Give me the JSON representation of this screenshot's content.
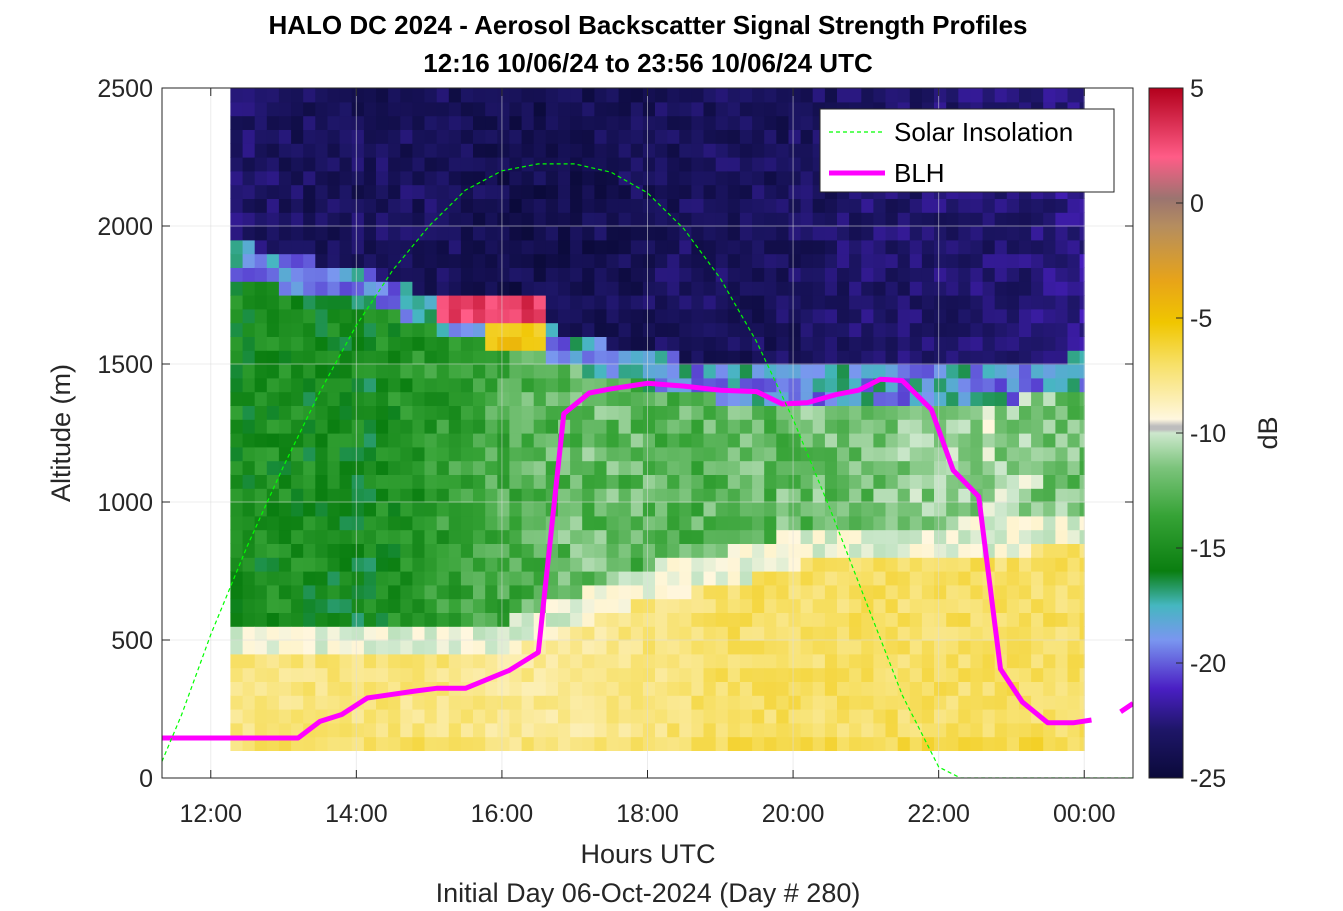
{
  "chart_data": {
    "type": "heatmap",
    "title": "HALO DC 2024 - Aerosol Backscatter Signal Strength Profiles",
    "subtitle": "12:16 10/06/24 to 23:56 10/06/24  UTC",
    "xlabel": "Hours UTC",
    "xlabel2": "Initial Day 06-Oct-2024 (Day # 280)",
    "ylabel": "Altitude (m)",
    "colorbar_label": "dB",
    "xlim": [
      11.33,
      24.67
    ],
    "ylim": [
      0,
      2500
    ],
    "grid": true,
    "x_tick_labels": [
      "12:00",
      "14:00",
      "16:00",
      "18:00",
      "20:00",
      "22:00",
      "00:00"
    ],
    "x_tick_values": [
      12,
      14,
      16,
      18,
      20,
      22,
      24
    ],
    "y_tick_labels": [
      "0",
      "500",
      "1000",
      "1500",
      "2000",
      "2500"
    ],
    "y_tick_values": [
      0,
      500,
      1000,
      1500,
      2000,
      2500
    ],
    "colorbar": {
      "range": [
        -25,
        5
      ],
      "tick_labels": [
        "5",
        "0",
        "-5",
        "-10",
        "-15",
        "-20",
        "-25"
      ],
      "tick_values": [
        5,
        0,
        -5,
        -10,
        -15,
        -20,
        -25
      ]
    },
    "legend": {
      "placement": "top-right",
      "entries": [
        "Solar Insolation",
        "BLH"
      ]
    },
    "heatmap": {
      "x_start": 12.27,
      "x_end": 24.0,
      "y_start": 100,
      "y_end": 2500,
      "z_description": "backscatter signal strength (dB)",
      "time_profiles": [
        {
          "t": 12.27,
          "top_of_haze": 430,
          "haze": -7,
          "ml": -15,
          "residual_top": 1900,
          "free": -23
        },
        {
          "t": 13.0,
          "top_of_haze": 430,
          "haze": -7,
          "ml": -15,
          "residual_top": 1850,
          "free": -23.5
        },
        {
          "t": 14.0,
          "top_of_haze": 430,
          "haze": -7,
          "ml": -15.5,
          "residual_top": 1800,
          "free": -23.5
        },
        {
          "t": 15.0,
          "top_of_haze": 430,
          "haze": -7,
          "ml": -14,
          "residual_top": 1700,
          "free": -23.5
        },
        {
          "t": 16.0,
          "top_of_haze": 450,
          "haze": -7.5,
          "ml": -13,
          "residual_top": 1650,
          "free": -24
        },
        {
          "t": 17.0,
          "top_of_haze": 550,
          "haze": -7.5,
          "ml": -12,
          "residual_top": 1550,
          "free": -24
        },
        {
          "t": 18.0,
          "top_of_haze": 650,
          "haze": -7,
          "ml": -12.5,
          "residual_top": 1500,
          "free": -23.5
        },
        {
          "t": 19.0,
          "top_of_haze": 700,
          "haze": -6.5,
          "ml": -12.5,
          "residual_top": 1450,
          "free": -23.5
        },
        {
          "t": 20.0,
          "top_of_haze": 780,
          "haze": -6.5,
          "ml": -12,
          "residual_top": 1450,
          "free": -23.5
        },
        {
          "t": 21.0,
          "top_of_haze": 800,
          "haze": -6.5,
          "ml": -12,
          "residual_top": 1450,
          "free": -23
        },
        {
          "t": 22.0,
          "top_of_haze": 800,
          "haze": -6.5,
          "ml": -11,
          "residual_top": 1450,
          "free": -23
        },
        {
          "t": 23.0,
          "top_of_haze": 820,
          "haze": -6.5,
          "ml": -11,
          "residual_top": 1450,
          "free": -23
        },
        {
          "t": 24.0,
          "top_of_haze": 850,
          "haze": -6.5,
          "ml": -12,
          "residual_top": 1500,
          "free": -22
        }
      ],
      "features": [
        {
          "t_range": [
            15.0,
            16.6
          ],
          "alt_range": [
            1640,
            1760
          ],
          "value": 3
        },
        {
          "t_range": [
            15.7,
            16.6
          ],
          "alt_range": [
            1560,
            1640
          ],
          "value": -5
        }
      ]
    },
    "series": [
      {
        "name": "BLH",
        "color": "#ff00ff",
        "x": [
          11.33,
          13.2,
          13.5,
          13.8,
          14.15,
          14.8,
          15.1,
          15.5,
          16.1,
          16.5,
          16.85,
          17.2,
          17.5,
          18.0,
          18.5,
          19.0,
          19.5,
          19.85,
          20.2,
          20.6,
          20.9,
          21.2,
          21.5,
          21.9,
          22.2,
          22.55,
          22.85,
          23.15,
          23.5,
          23.85,
          24.1
        ],
        "y": [
          145,
          145,
          205,
          230,
          290,
          315,
          325,
          325,
          390,
          455,
          1320,
          1395,
          1410,
          1430,
          1420,
          1405,
          1400,
          1355,
          1360,
          1390,
          1405,
          1445,
          1440,
          1335,
          1115,
          1020,
          395,
          275,
          200,
          200,
          210
        ]
      },
      {
        "name": "BLH",
        "color": "#ff00ff",
        "x": [
          24.5,
          24.67
        ],
        "y": [
          240,
          270
        ]
      },
      {
        "name": "Solar Insolation",
        "color": "#00ff00",
        "x": [
          11.33,
          11.6,
          12.0,
          12.5,
          13.0,
          13.5,
          14.0,
          14.5,
          15.0,
          15.5,
          16.0,
          16.5,
          17.0,
          17.5,
          18.0,
          18.5,
          19.0,
          19.5,
          20.0,
          20.5,
          21.0,
          21.5,
          22.0,
          22.3,
          22.65,
          24.67
        ],
        "y": [
          60,
          230,
          520,
          840,
          1130,
          1400,
          1640,
          1840,
          2000,
          2130,
          2200,
          2225,
          2225,
          2195,
          2120,
          1990,
          1810,
          1580,
          1300,
          980,
          640,
          300,
          40,
          0,
          0,
          0
        ]
      }
    ]
  }
}
